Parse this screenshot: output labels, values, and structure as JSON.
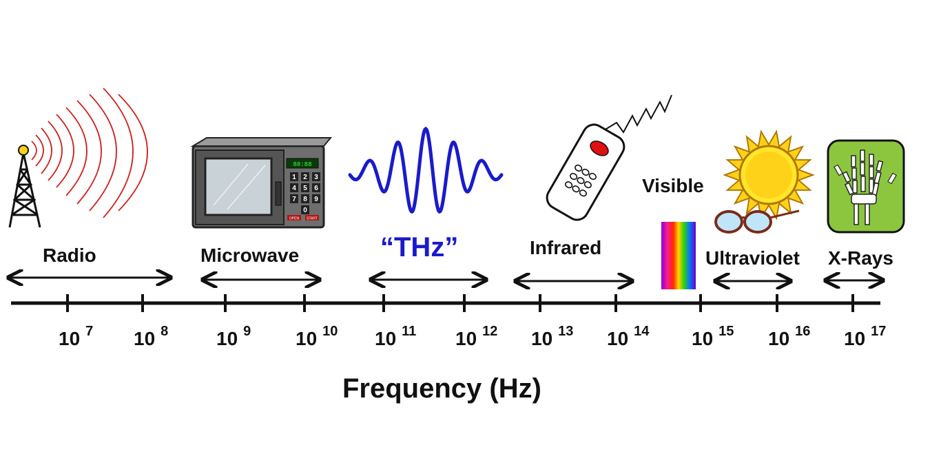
{
  "colors": {
    "thz_blue": "#1a1acc",
    "radio_wave": "#cc2222",
    "microwave_body": "#6e6e6e",
    "remote_button": "#e01010",
    "sun_yellow": "#ffd21a",
    "xray_green": "#8cc63f",
    "axis": "#111111"
  },
  "icons": [
    "radio-tower-icon",
    "microwave-oven-icon",
    "thz-wave-icon",
    "remote-control-icon",
    "visible-spectrum-icon",
    "sun-icon",
    "sunglasses-icon",
    "xray-hand-icon"
  ],
  "microwave_display": "88:88",
  "microwave_keys": [
    "1",
    "2",
    "3",
    "4",
    "5",
    "6",
    "7",
    "8",
    "9",
    "0"
  ],
  "microwave_buttons": [
    "OPEN",
    "START"
  ],
  "bands": [
    {
      "name": "Radio"
    },
    {
      "name": "Microwave"
    },
    {
      "name": "“THz”"
    },
    {
      "name": "Infrared"
    },
    {
      "name": "Visible"
    },
    {
      "name": "Ultraviolet"
    },
    {
      "name": "X-Rays"
    }
  ],
  "ticks": [
    {
      "base": "10",
      "exp": "7"
    },
    {
      "base": "10",
      "exp": "8"
    },
    {
      "base": "10",
      "exp": "9"
    },
    {
      "base": "10",
      "exp": "10"
    },
    {
      "base": "10",
      "exp": "11"
    },
    {
      "base": "10",
      "exp": "12"
    },
    {
      "base": "10",
      "exp": "13"
    },
    {
      "base": "10",
      "exp": "14"
    },
    {
      "base": "10",
      "exp": "15"
    },
    {
      "base": "10",
      "exp": "16"
    },
    {
      "base": "10",
      "exp": "17"
    }
  ],
  "axis_title": "Frequency (Hz)"
}
